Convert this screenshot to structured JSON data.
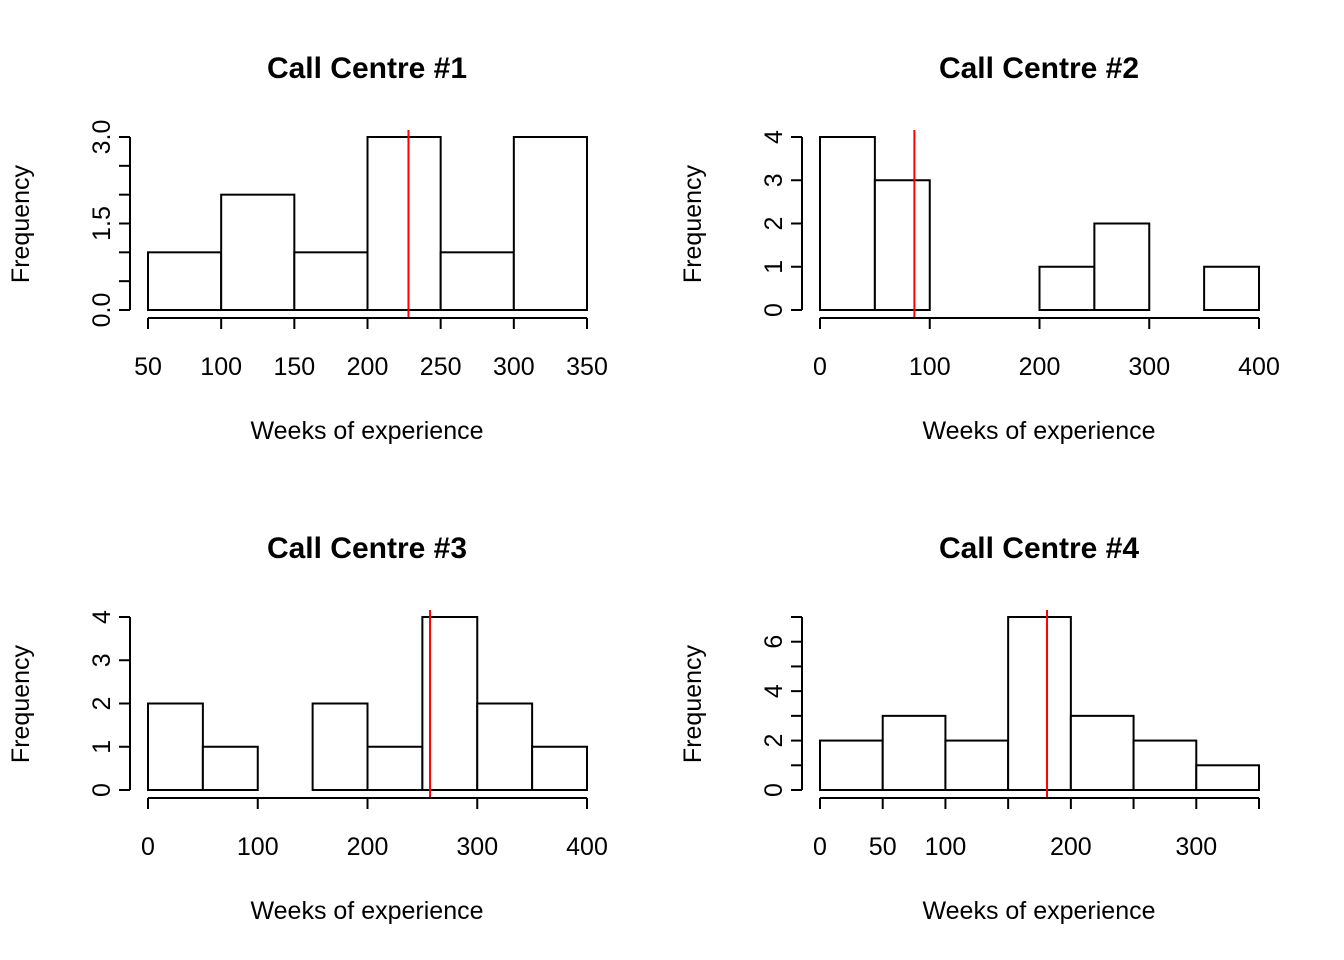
{
  "line_color": "#ff0000",
  "bar_fill": "#ffffff",
  "stroke_color": "#000000",
  "chart_data": [
    {
      "type": "bar",
      "title": "Call Centre #1",
      "xlabel": "Weeks of experience",
      "ylabel": "Frequency",
      "bins": [
        [
          50,
          100
        ],
        [
          100,
          150
        ],
        [
          150,
          200
        ],
        [
          200,
          250
        ],
        [
          250,
          300
        ],
        [
          300,
          350
        ]
      ],
      "values": [
        1,
        2,
        1,
        3,
        1,
        3
      ],
      "xlim": [
        50,
        350
      ],
      "ylim": [
        0,
        3
      ],
      "xticks": [
        50,
        100,
        150,
        200,
        250,
        300,
        350
      ],
      "xtick_labels": [
        "50",
        "100",
        "150",
        "200",
        "250",
        "300",
        "350"
      ],
      "yticks": [
        0,
        0.5,
        1,
        1.5,
        2,
        2.5,
        3
      ],
      "ytick_labels": [
        "0.0",
        "",
        "",
        "1.5",
        "",
        "",
        "3.0"
      ],
      "mean_line": 228
    },
    {
      "type": "bar",
      "title": "Call Centre #2",
      "xlabel": "Weeks of experience",
      "ylabel": "Frequency",
      "bins": [
        [
          0,
          50
        ],
        [
          50,
          100
        ],
        [
          100,
          150
        ],
        [
          150,
          200
        ],
        [
          200,
          250
        ],
        [
          250,
          300
        ],
        [
          300,
          350
        ],
        [
          350,
          400
        ]
      ],
      "values": [
        4,
        3,
        0,
        0,
        1,
        2,
        0,
        1
      ],
      "xlim": [
        0,
        400
      ],
      "ylim": [
        0,
        4
      ],
      "xticks": [
        0,
        100,
        200,
        300,
        400
      ],
      "xtick_labels": [
        "0",
        "100",
        "200",
        "300",
        "400"
      ],
      "yticks": [
        0,
        1,
        2,
        3,
        4
      ],
      "ytick_labels": [
        "0",
        "1",
        "2",
        "3",
        "4"
      ],
      "mean_line": 86
    },
    {
      "type": "bar",
      "title": "Call Centre #3",
      "xlabel": "Weeks of experience",
      "ylabel": "Frequency",
      "bins": [
        [
          0,
          50
        ],
        [
          50,
          100
        ],
        [
          100,
          150
        ],
        [
          150,
          200
        ],
        [
          200,
          250
        ],
        [
          250,
          300
        ],
        [
          300,
          350
        ],
        [
          350,
          400
        ]
      ],
      "values": [
        2,
        1,
        0,
        2,
        1,
        4,
        2,
        1
      ],
      "xlim": [
        0,
        400
      ],
      "ylim": [
        0,
        4
      ],
      "xticks": [
        0,
        100,
        200,
        300,
        400
      ],
      "xtick_labels": [
        "0",
        "100",
        "200",
        "300",
        "400"
      ],
      "yticks": [
        0,
        1,
        2,
        3,
        4
      ],
      "ytick_labels": [
        "0",
        "1",
        "2",
        "3",
        "4"
      ],
      "mean_line": 257
    },
    {
      "type": "bar",
      "title": "Call Centre #4",
      "xlabel": "Weeks of experience",
      "ylabel": "Frequency",
      "bins": [
        [
          0,
          50
        ],
        [
          50,
          100
        ],
        [
          100,
          150
        ],
        [
          150,
          200
        ],
        [
          200,
          250
        ],
        [
          250,
          300
        ],
        [
          300,
          350
        ]
      ],
      "values": [
        2,
        3,
        2,
        7,
        3,
        2,
        1
      ],
      "xlim": [
        0,
        350
      ],
      "ylim": [
        0,
        7
      ],
      "xticks": [
        0,
        50,
        100,
        200,
        300
      ],
      "xtick_labels": [
        "0",
        "50",
        "100",
        "200",
        "300"
      ],
      "xticks_unlabeled": [
        150,
        250,
        350
      ],
      "yticks": [
        0,
        1,
        2,
        3,
        4,
        5,
        6,
        7
      ],
      "ytick_labels": [
        "0",
        "",
        "2",
        "",
        "4",
        "",
        "6",
        ""
      ],
      "mean_line": 181
    }
  ]
}
